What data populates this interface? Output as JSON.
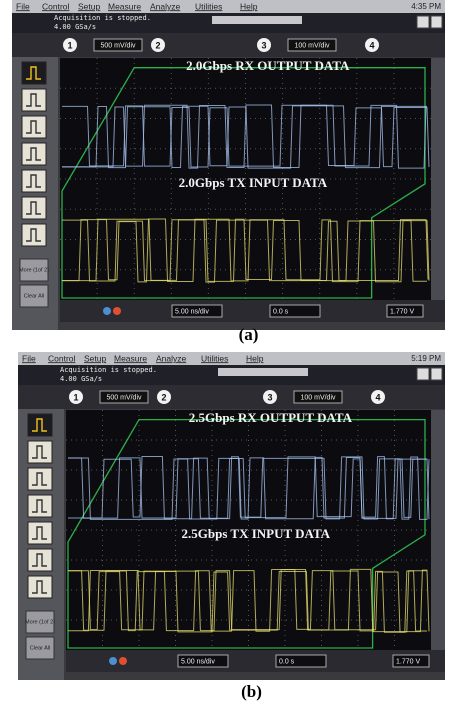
{
  "panels": [
    {
      "menu": [
        "File",
        "Control",
        "Setup",
        "Measure",
        "Analyze",
        "Utilities",
        "Help"
      ],
      "clock": "4:35 PM",
      "status": "Acquisition is stopped.",
      "sample_rate": "4.00 GSa/s",
      "channel_numbers": [
        "1",
        "2",
        "3",
        "4"
      ],
      "channel_1_scale": "500 mV/div",
      "channel_3_scale": "100 mV/div",
      "rx_label": "2.0Gbps RX OUTPUT DATA",
      "tx_label": "2.0Gbps TX INPUT DATA",
      "timebase": "5.00 ns/div",
      "delay": "0.0 s",
      "trigger_level": "1.770 V",
      "more": "More (1of 2)",
      "clear": "Clear All",
      "caption": "(a)"
    },
    {
      "menu": [
        "File",
        "Control",
        "Setup",
        "Measure",
        "Analyze",
        "Utilities",
        "Help"
      ],
      "clock": "5:19 PM",
      "status": "Acquisition is stopped.",
      "sample_rate": "4.00 GSa/s",
      "channel_numbers": [
        "1",
        "2",
        "3",
        "4"
      ],
      "channel_1_scale": "500 mV/div",
      "channel_3_scale": "100 mV/div",
      "rx_label": "2.5Gbps RX OUTPUT DATA",
      "tx_label": "2.5Gbps TX INPUT DATA",
      "timebase": "5.00 ns/div",
      "delay": "0.0 s",
      "trigger_level": "1.770 V",
      "more": "More (1of 2)",
      "clear": "Clear All",
      "caption": "(b)"
    }
  ]
}
